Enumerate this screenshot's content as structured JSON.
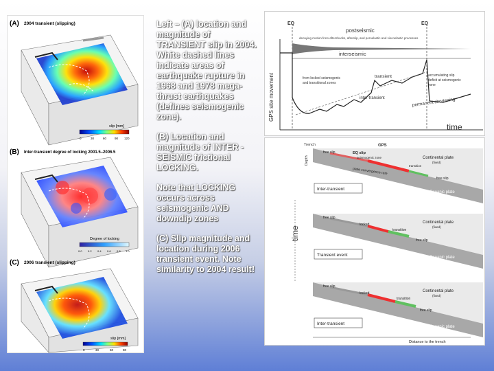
{
  "caption": {
    "p1": "Left – (A) location and magnitude of TRANSIENT slip in 2004. White dashed lines indicate areas of earthquake rupture in 1968 and 1978 mega-thrust earthquakes (defines seismogenic zone).",
    "p2": "(B) Location and magnitude of INTER -SEISMIC frictional LOCKING.",
    "p3": "Note that LOCKING occurs across seismogenic AND downdip zones",
    "p4": "(C) Slip magnitude and location during 2006 transient event. Note similarity to 2004 result!"
  },
  "left_figure": {
    "panel_a": {
      "letter": "(A)",
      "title": "2004 transient (slipping)",
      "colorbar_label": "slip [mm]",
      "ticks": [
        "0",
        "30",
        "60",
        "90",
        "120"
      ]
    },
    "panel_b": {
      "letter": "(B)",
      "title": "Inter-transient degree of locking 2001.5–2006.5",
      "colorbar_label": "Degree of locking",
      "ticks": [
        "0.0",
        "0.2",
        "0.4",
        "0.6",
        "0.8",
        "1.0"
      ]
    },
    "panel_c": {
      "letter": "(C)",
      "title": "2006 transient (slipping)",
      "colorbar_label": "slip [mm]",
      "ticks": [
        "0",
        "30",
        "60",
        "90"
      ]
    }
  },
  "timeline": {
    "eq1": "EQ",
    "eq2": "EQ",
    "postseismic": "postseismic",
    "postseismic_desc": "decaying motion from aftershocks, afterslip, and poroelastic and viscoelastic processes",
    "interseismic": "interseismic",
    "transient": "transient",
    "locked_note_1": "from locked seismogenic",
    "locked_note_2": "and transitional zones",
    "accum_1": "accumulating slip",
    "accum_2": "deficit at seismogenic",
    "accum_3": "zone",
    "inter_transient": "inter-transient",
    "permanent": "permanent shortening",
    "ylabel": "GPS site movement",
    "xlabel": "time"
  },
  "schematic": {
    "trench": "Trench",
    "gps": "GPS",
    "depth": "Depth",
    "time_axis": "time",
    "distance": "Distance to the trench",
    "continental": "Continental plate",
    "fixed": "(fixed)",
    "oceanic": "Oceanic plate",
    "convergence": "plate convergence rate",
    "free_slip": "free slip",
    "locked": "locked",
    "transition": "transition",
    "eq_slip": "EQ slip",
    "seismogenic": "seismogenic zone",
    "row1": "Inter-transient",
    "row2": "Transient event",
    "row3": "Inter-transient"
  }
}
